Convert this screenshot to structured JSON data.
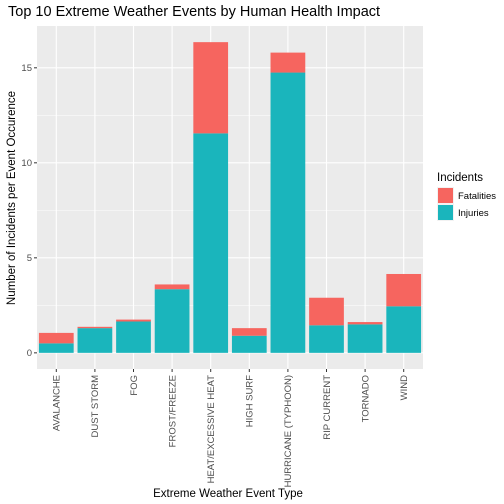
{
  "chart_data": {
    "type": "bar",
    "stacked": true,
    "title": "Top 10 Extreme Weather Events by Human Health Impact",
    "xlabel": "Extreme Weather Event Type",
    "ylabel": "Number of Incidents per Event Occurence",
    "categories": [
      "AVALANCHE",
      "DUST STORM",
      "FOG",
      "FROST/FREEZE",
      "HEAT/EXCESSIVE HEAT",
      "HIGH SURF",
      "HURRICANE (TYPHOON)",
      "RIP CURRENT",
      "TORNADO",
      "WIND"
    ],
    "series": [
      {
        "name": "Injuries",
        "color": "#1ab5bc",
        "values": [
          0.5,
          1.3,
          1.65,
          3.35,
          11.55,
          0.9,
          14.75,
          1.45,
          1.5,
          2.45
        ]
      },
      {
        "name": "Fatalities",
        "color": "#f6655f",
        "values": [
          0.55,
          0.07,
          0.1,
          0.25,
          4.8,
          0.4,
          1.05,
          1.45,
          0.12,
          1.7
        ]
      }
    ],
    "ylim": [
      -0.85,
      17.2
    ],
    "yticks": [
      0,
      5,
      10,
      15
    ],
    "grid": true,
    "legend": {
      "title": "Incidents",
      "position": "right",
      "entries": [
        "Fatalities",
        "Injuries"
      ]
    }
  }
}
